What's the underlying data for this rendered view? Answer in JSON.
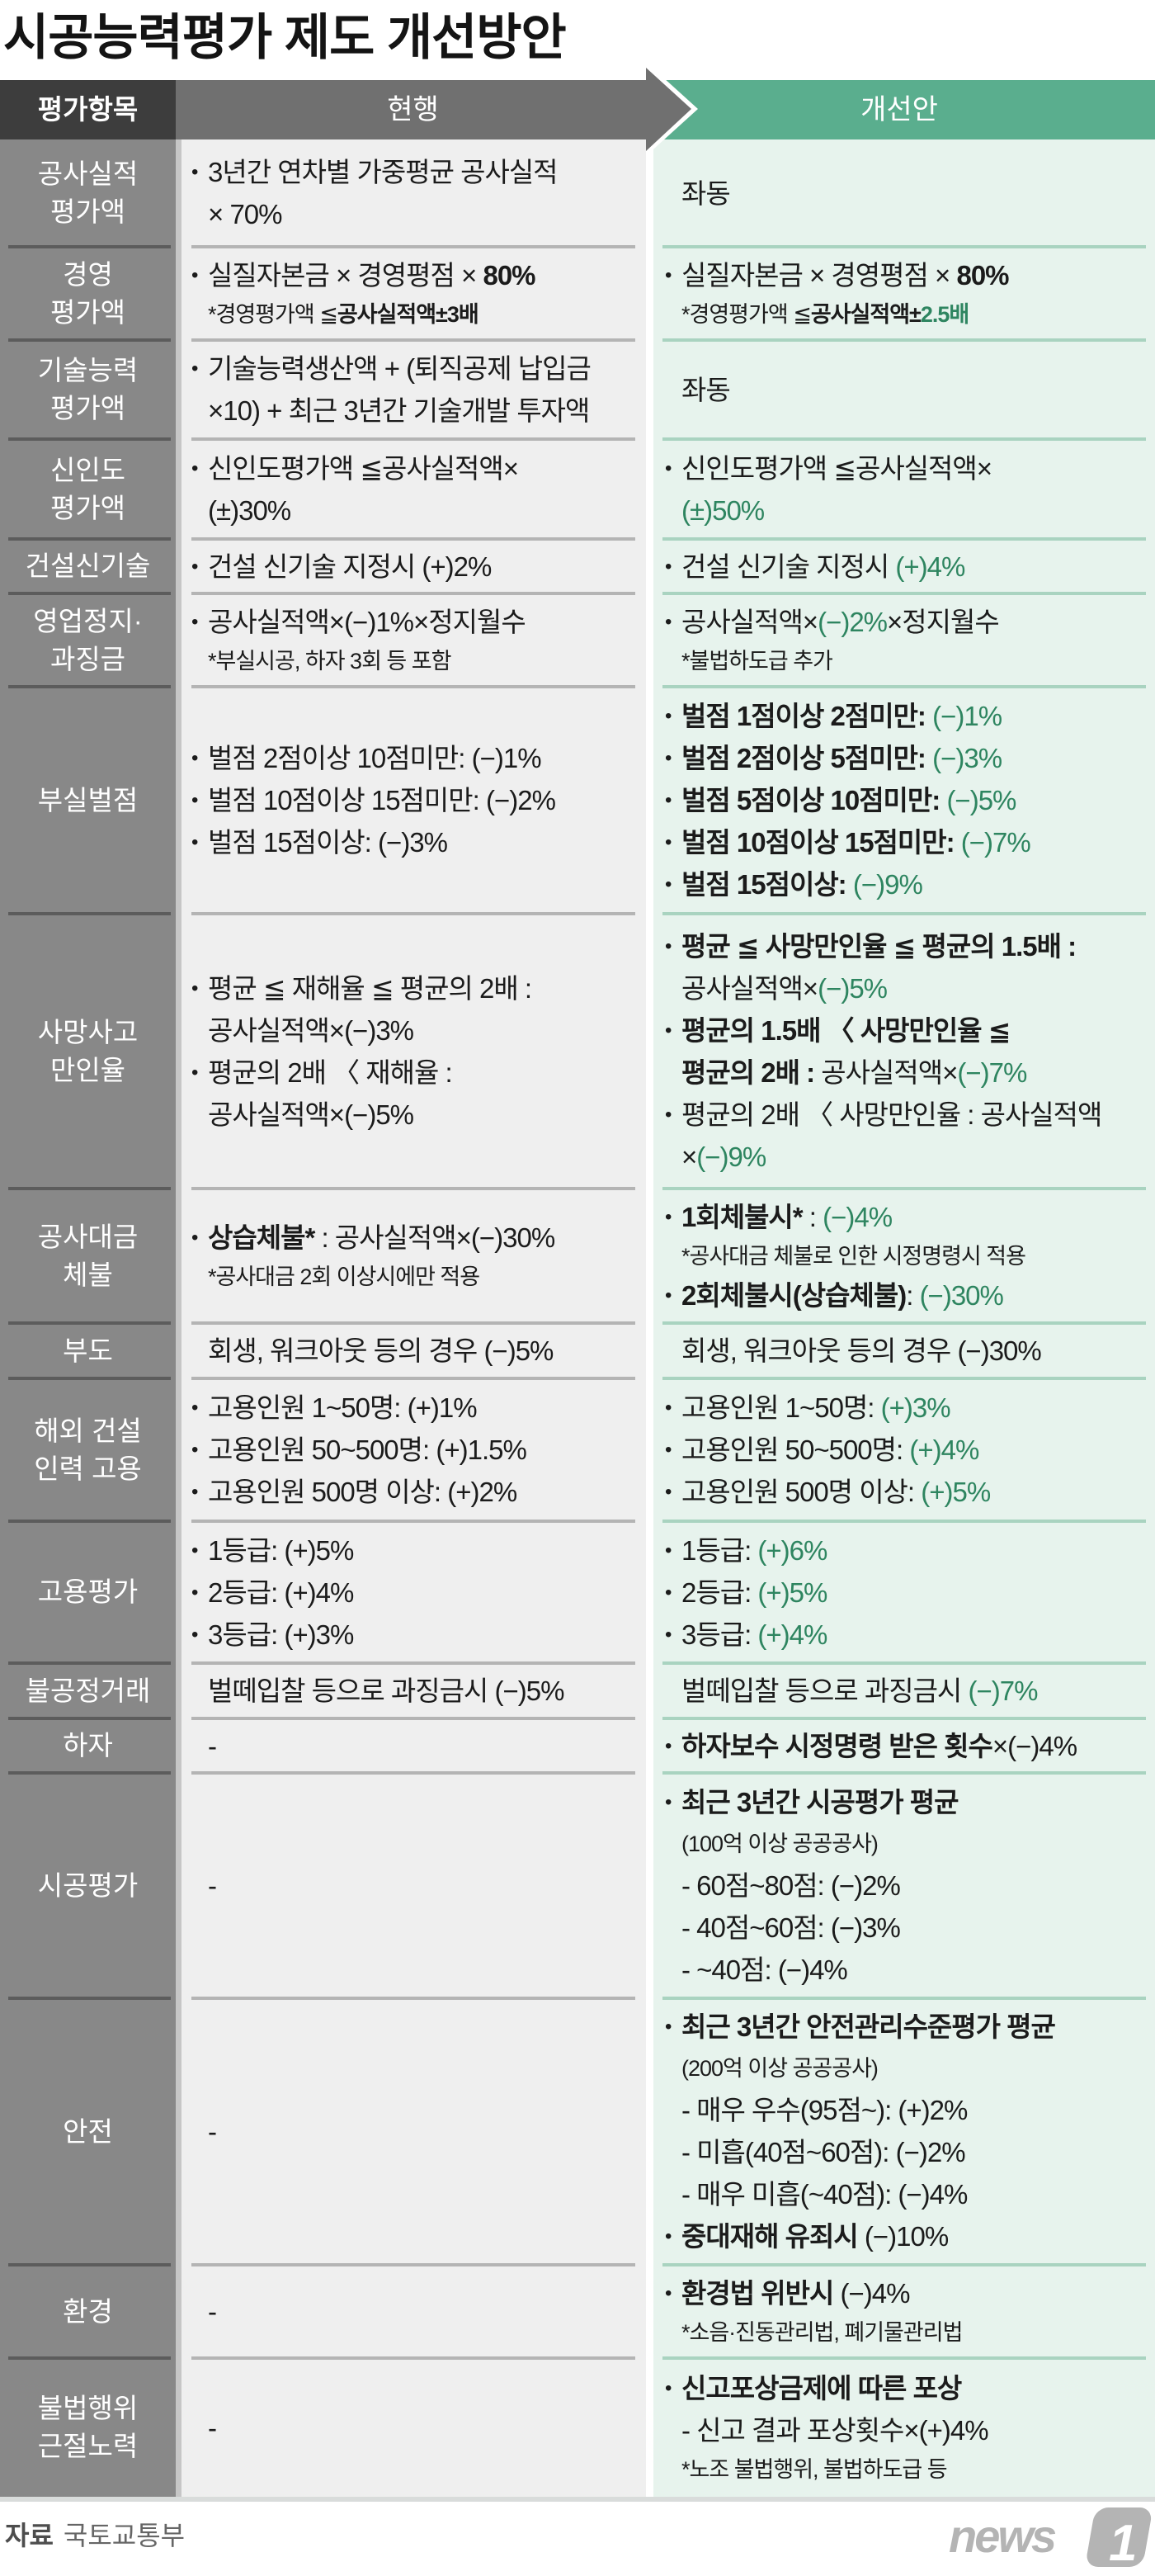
{
  "title": "시공능력평가 제도 개선방안",
  "header": {
    "category": "평가항목",
    "current": "현행",
    "proposed": "개선안"
  },
  "colors": {
    "category_header": "#3d3d3d",
    "current_header": "#707070",
    "proposed_header": "#5aae8e",
    "highlight_text": "#2e8560",
    "current_body": "#efefef",
    "proposed_body": "#e7f3ed"
  },
  "rows": [
    {
      "label": [
        "공사실적",
        "평가액"
      ],
      "current": [
        {
          "bullet": true,
          "segs": [
            {
              "t": "3년간 연차별 가중평균 공사실적"
            }
          ]
        },
        {
          "segs": [
            {
              "t": "× 70%"
            }
          ]
        }
      ],
      "proposed": [
        {
          "segs": [
            {
              "t": "좌동"
            }
          ]
        }
      ]
    },
    {
      "label": [
        "경영",
        "평가액"
      ],
      "current": [
        {
          "bullet": true,
          "segs": [
            {
              "t": "실질자본금 × 경영평점 × "
            },
            {
              "t": "80%",
              "b": true
            }
          ]
        },
        {
          "kind": "note",
          "segs": [
            {
              "t": "*경영평가액 ≦"
            },
            {
              "t": "공사실적액±3배",
              "b": true
            }
          ]
        }
      ],
      "proposed": [
        {
          "bullet": true,
          "segs": [
            {
              "t": "실질자본금 × 경영평점 × "
            },
            {
              "t": "80%",
              "b": true
            }
          ]
        },
        {
          "kind": "note",
          "segs": [
            {
              "t": "*경영평가액 ≦"
            },
            {
              "t": "공사실적액±",
              "b": true
            },
            {
              "t": "2.5배",
              "b": true,
              "g": true
            }
          ]
        }
      ]
    },
    {
      "label": [
        "기술능력",
        "평가액"
      ],
      "current": [
        {
          "bullet": true,
          "segs": [
            {
              "t": "기술능력생산액 + (퇴직공제 납입금"
            }
          ]
        },
        {
          "segs": [
            {
              "t": "×10) + 최근 3년간 기술개발 투자액"
            }
          ]
        }
      ],
      "proposed": [
        {
          "segs": [
            {
              "t": "좌동"
            }
          ]
        }
      ]
    },
    {
      "label": [
        "신인도",
        "평가액"
      ],
      "current": [
        {
          "bullet": true,
          "segs": [
            {
              "t": "신인도평가액 ≦공사실적액×"
            }
          ]
        },
        {
          "segs": [
            {
              "t": "(±)30%"
            }
          ]
        }
      ],
      "proposed": [
        {
          "bullet": true,
          "segs": [
            {
              "t": "신인도평가액 ≦공사실적액×"
            }
          ]
        },
        {
          "segs": [
            {
              "t": "(±)50%",
              "g": true
            }
          ]
        }
      ]
    },
    {
      "label": [
        "건설신기술"
      ],
      "current": [
        {
          "bullet": true,
          "segs": [
            {
              "t": "건설 신기술 지정시 (+)2%"
            }
          ]
        }
      ],
      "proposed": [
        {
          "bullet": true,
          "segs": [
            {
              "t": "건설 신기술 지정시 "
            },
            {
              "t": "(+)4%",
              "g": true
            }
          ]
        }
      ]
    },
    {
      "label": [
        "영업정지·",
        "과징금"
      ],
      "current": [
        {
          "bullet": true,
          "segs": [
            {
              "t": "공사실적액×(−)1%×정지월수"
            }
          ]
        },
        {
          "kind": "note",
          "segs": [
            {
              "t": "*부실시공, 하자 3회 등 포함"
            }
          ]
        }
      ],
      "proposed": [
        {
          "bullet": true,
          "segs": [
            {
              "t": "공사실적액×"
            },
            {
              "t": "(−)2%",
              "g": true
            },
            {
              "t": "×정지월수"
            }
          ]
        },
        {
          "kind": "note",
          "segs": [
            {
              "t": "*불법하도급 추가"
            }
          ]
        }
      ]
    },
    {
      "label": [
        "부실벌점"
      ],
      "current": [
        {
          "bullet": true,
          "segs": [
            {
              "t": "벌점 2점이상 10점미만: (−)1%"
            }
          ]
        },
        {
          "bullet": true,
          "segs": [
            {
              "t": "벌점 10점이상 15점미만: (−)2%"
            }
          ]
        },
        {
          "bullet": true,
          "segs": [
            {
              "t": "벌점 15점이상: (−)3%"
            }
          ]
        }
      ],
      "proposed": [
        {
          "bullet": true,
          "segs": [
            {
              "t": "벌점 1점이상 2점미만: ",
              "b": true
            },
            {
              "t": "(−)1%",
              "g": true
            }
          ]
        },
        {
          "bullet": true,
          "segs": [
            {
              "t": "벌점 2점이상 5점미만: ",
              "b": true
            },
            {
              "t": "(−)3%",
              "g": true
            }
          ]
        },
        {
          "bullet": true,
          "segs": [
            {
              "t": "벌점 5점이상 10점미만: ",
              "b": true
            },
            {
              "t": "(−)5%",
              "g": true
            }
          ]
        },
        {
          "bullet": true,
          "segs": [
            {
              "t": "벌점 10점이상 15점미만: ",
              "b": true
            },
            {
              "t": "(−)7%",
              "g": true
            }
          ]
        },
        {
          "bullet": true,
          "segs": [
            {
              "t": "벌점 15점이상: ",
              "b": true
            },
            {
              "t": "(−)9%",
              "g": true
            }
          ]
        }
      ]
    },
    {
      "label": [
        "사망사고",
        "만인율"
      ],
      "current": [
        {
          "bullet": true,
          "segs": [
            {
              "t": "평균 ≦ 재해율 ≦ 평균의 2배 :"
            }
          ]
        },
        {
          "segs": [
            {
              "t": "공사실적액×(−)3%"
            }
          ]
        },
        {
          "bullet": true,
          "segs": [
            {
              "t": "평균의 2배 〈 재해율 :"
            }
          ]
        },
        {
          "segs": [
            {
              "t": "공사실적액×(−)5%"
            }
          ]
        }
      ],
      "proposed": [
        {
          "bullet": true,
          "segs": [
            {
              "t": "평균 ≦ 사망만인율 ≦ 평균의 1.5배 :",
              "b": true
            }
          ]
        },
        {
          "segs": [
            {
              "t": "공사실적액×"
            },
            {
              "t": "(−)5%",
              "g": true
            }
          ]
        },
        {
          "bullet": true,
          "segs": [
            {
              "t": "평균의 1.5배 〈 사망만인율 ≦",
              "b": true
            }
          ]
        },
        {
          "segs": [
            {
              "t": "평균의 2배 :",
              "b": true
            },
            {
              "t": " 공사실적액×"
            },
            {
              "t": "(−)7%",
              "g": true
            }
          ]
        },
        {
          "bullet": true,
          "segs": [
            {
              "t": "평균의 2배 〈 사망만인율 : 공사실적액"
            }
          ]
        },
        {
          "segs": [
            {
              "t": "×"
            },
            {
              "t": "(−)9%",
              "g": true
            }
          ]
        }
      ]
    },
    {
      "label": [
        "공사대금",
        "체불"
      ],
      "current": [
        {
          "bullet": true,
          "segs": [
            {
              "t": "상습체불*",
              "b": true
            },
            {
              "t": " : 공사실적액×(−)30%"
            }
          ]
        },
        {
          "kind": "note",
          "segs": [
            {
              "t": "*공사대금 2회 이상시에만 적용"
            }
          ]
        }
      ],
      "proposed": [
        {
          "bullet": true,
          "segs": [
            {
              "t": "1회체불시*",
              "b": true
            },
            {
              "t": " : "
            },
            {
              "t": "(−)4%",
              "g": true
            }
          ]
        },
        {
          "kind": "note",
          "segs": [
            {
              "t": "*공사대금 체불로 인한 시정명령시 적용"
            }
          ]
        },
        {
          "bullet": true,
          "segs": [
            {
              "t": "2회체불시(상습체불)",
              "b": true
            },
            {
              "t": ": "
            },
            {
              "t": "(−)30%",
              "g": true
            }
          ]
        }
      ]
    },
    {
      "label": [
        "부도"
      ],
      "current": [
        {
          "segs": [
            {
              "t": "회생, 워크아웃 등의 경우 (−)5%"
            }
          ]
        }
      ],
      "proposed": [
        {
          "segs": [
            {
              "t": "회생, 워크아웃 등의 경우 (−)30%"
            }
          ]
        }
      ]
    },
    {
      "label": [
        "해외 건설",
        "인력 고용"
      ],
      "current": [
        {
          "bullet": true,
          "segs": [
            {
              "t": "고용인원 1~50명: (+)1%"
            }
          ]
        },
        {
          "bullet": true,
          "segs": [
            {
              "t": "고용인원 50~500명: (+)1.5%"
            }
          ]
        },
        {
          "bullet": true,
          "segs": [
            {
              "t": "고용인원 500명 이상: (+)2%"
            }
          ]
        }
      ],
      "proposed": [
        {
          "bullet": true,
          "segs": [
            {
              "t": "고용인원 1~50명: "
            },
            {
              "t": "(+)3%",
              "g": true
            }
          ]
        },
        {
          "bullet": true,
          "segs": [
            {
              "t": "고용인원 50~500명: "
            },
            {
              "t": "(+)4%",
              "g": true
            }
          ]
        },
        {
          "bullet": true,
          "segs": [
            {
              "t": "고용인원 500명 이상: "
            },
            {
              "t": "(+)5%",
              "g": true
            }
          ]
        }
      ]
    },
    {
      "label": [
        "고용평가"
      ],
      "current": [
        {
          "bullet": true,
          "segs": [
            {
              "t": "1등급: (+)5%"
            }
          ]
        },
        {
          "bullet": true,
          "segs": [
            {
              "t": "2등급: (+)4%"
            }
          ]
        },
        {
          "bullet": true,
          "segs": [
            {
              "t": "3등급: (+)3%"
            }
          ]
        }
      ],
      "proposed": [
        {
          "bullet": true,
          "segs": [
            {
              "t": "1등급: "
            },
            {
              "t": "(+)6%",
              "g": true
            }
          ]
        },
        {
          "bullet": true,
          "segs": [
            {
              "t": "2등급: "
            },
            {
              "t": "(+)5%",
              "g": true
            }
          ]
        },
        {
          "bullet": true,
          "segs": [
            {
              "t": "3등급: "
            },
            {
              "t": "(+)4%",
              "g": true
            }
          ]
        }
      ]
    },
    {
      "label": [
        "불공정거래"
      ],
      "current": [
        {
          "segs": [
            {
              "t": "벌떼입찰 등으로 과징금시 (−)5%"
            }
          ]
        }
      ],
      "proposed": [
        {
          "segs": [
            {
              "t": "벌떼입찰 등으로 과징금시 "
            },
            {
              "t": "(−)7%",
              "g": true
            }
          ]
        }
      ]
    },
    {
      "label": [
        "하자"
      ],
      "current": [
        {
          "segs": [
            {
              "t": "-"
            }
          ]
        }
      ],
      "proposed": [
        {
          "bullet": true,
          "segs": [
            {
              "t": "하자보수 시정명령 받은 횟수",
              "b": true
            },
            {
              "t": "×(−)4%"
            }
          ]
        }
      ]
    },
    {
      "label": [
        "시공평가"
      ],
      "current": [
        {
          "segs": [
            {
              "t": "-"
            }
          ]
        }
      ],
      "proposed": [
        {
          "bullet": true,
          "segs": [
            {
              "t": "최근 3년간 시공평가 평균",
              "b": true
            }
          ]
        },
        {
          "kind": "sub",
          "segs": [
            {
              "t": "(100억 이상 공공공사)"
            }
          ]
        },
        {
          "segs": [
            {
              "t": "- 60점~80점: (−)2%"
            }
          ]
        },
        {
          "segs": [
            {
              "t": "- 40점~60점: (−)3%"
            }
          ]
        },
        {
          "segs": [
            {
              "t": "- ~40점: (−)4%"
            }
          ]
        }
      ]
    },
    {
      "label": [
        "안전"
      ],
      "current": [
        {
          "segs": [
            {
              "t": "-"
            }
          ]
        }
      ],
      "proposed": [
        {
          "bullet": true,
          "segs": [
            {
              "t": "최근 3년간 안전관리수준평가 평균",
              "b": true
            }
          ]
        },
        {
          "kind": "sub",
          "segs": [
            {
              "t": "(200억 이상 공공공사)"
            }
          ]
        },
        {
          "segs": [
            {
              "t": "- 매우 우수(95점~): (+)2%"
            }
          ]
        },
        {
          "segs": [
            {
              "t": "- 미흡(40점~60점): (−)2%"
            }
          ]
        },
        {
          "segs": [
            {
              "t": "- 매우 미흡(~40점): (−)4%"
            }
          ]
        },
        {
          "bullet": true,
          "segs": [
            {
              "t": "중대재해 유죄시",
              "b": true
            },
            {
              "t": " (−)10%"
            }
          ]
        }
      ]
    },
    {
      "label": [
        "환경"
      ],
      "current": [
        {
          "segs": [
            {
              "t": "-"
            }
          ]
        }
      ],
      "proposed": [
        {
          "bullet": true,
          "segs": [
            {
              "t": "환경법 위반시",
              "b": true
            },
            {
              "t": " (−)4%"
            }
          ]
        },
        {
          "kind": "note",
          "segs": [
            {
              "t": "*소음·진동관리법, 폐기물관리법"
            }
          ]
        }
      ]
    },
    {
      "label": [
        "불법행위",
        "근절노력"
      ],
      "current": [
        {
          "segs": [
            {
              "t": "-"
            }
          ]
        }
      ],
      "proposed": [
        {
          "bullet": true,
          "segs": [
            {
              "t": "신고포상금제에 따른 포상",
              "b": true
            }
          ]
        },
        {
          "segs": [
            {
              "t": "- 신고 결과 포상횟수×(+)4%"
            }
          ]
        },
        {
          "kind": "note",
          "segs": [
            {
              "t": "*노조 불법행위, 불법하도급 등"
            }
          ]
        }
      ]
    }
  ],
  "footer": {
    "source_label": "자료",
    "source_name": "국토교통부",
    "logo": {
      "word": "news",
      "number": "1"
    }
  }
}
